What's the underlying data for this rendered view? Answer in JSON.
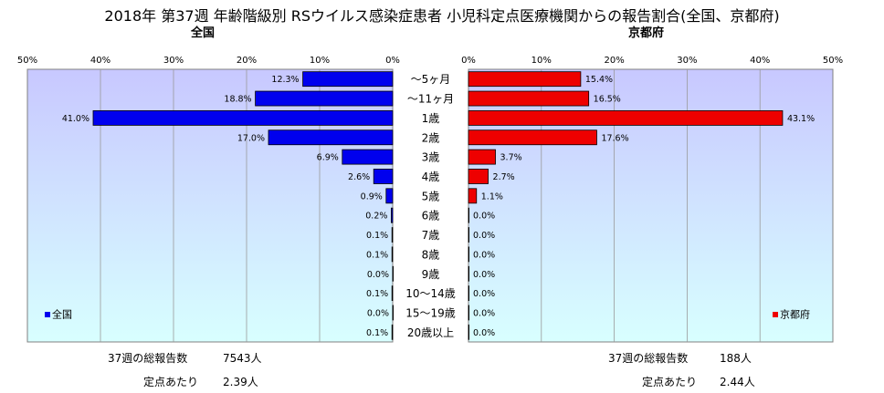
{
  "title": "2018年 第37週 年齢階級別 RSウイルス感染症患者 小児科定点医療機関からの報告割合(全国、京都府)",
  "left_subtitle": "全国",
  "right_subtitle": "京都府",
  "footer": {
    "national_total_label": "37週の総報告数",
    "national_total_value": "7543人",
    "national_per_label": "定点あたり",
    "national_per_value": "2.39人",
    "kyoto_total_label": "37週の総報告数",
    "kyoto_total_value": "188人",
    "kyoto_per_label": "定点あたり",
    "kyoto_per_value": "2.44人"
  },
  "colors": {
    "national": "#0000ee",
    "kyoto": "#ee0000",
    "plot_top": "#c8c8ff",
    "plot_bottom": "#d8ffff"
  },
  "chart_data": {
    "type": "bar",
    "orientation": "horizontal",
    "layout": "back-to-back",
    "categories": [
      "～5ヶ月",
      "～11ヶ月",
      "1歳",
      "2歳",
      "3歳",
      "4歳",
      "5歳",
      "6歳",
      "7歳",
      "8歳",
      "9歳",
      "10～14歳",
      "15～19歳",
      "20歳以上"
    ],
    "xlim": [
      0,
      50
    ],
    "ticks": [
      "0%",
      "10%",
      "20%",
      "30%",
      "40%",
      "50%"
    ],
    "series": [
      {
        "name": "全国",
        "side": "left",
        "values": [
          12.3,
          18.8,
          41.0,
          17.0,
          6.9,
          2.6,
          0.9,
          0.2,
          0.1,
          0.1,
          0.0,
          0.1,
          0.0,
          0.1
        ],
        "labels": [
          "12.3%",
          "18.8%",
          "41.0%",
          "17.0%",
          "6.9%",
          "2.6%",
          "0.9%",
          "0.2%",
          "0.1%",
          "0.1%",
          "0.0%",
          "0.1%",
          "0.0%",
          "0.1%"
        ]
      },
      {
        "name": "京都府",
        "side": "right",
        "values": [
          15.4,
          16.5,
          43.1,
          17.6,
          3.7,
          2.7,
          1.1,
          0.0,
          0.0,
          0.0,
          0.0,
          0.0,
          0.0,
          0.0
        ],
        "labels": [
          "15.4%",
          "16.5%",
          "43.1%",
          "17.6%",
          "3.7%",
          "2.7%",
          "1.1%",
          "0.0%",
          "0.0%",
          "0.0%",
          "0.0%",
          "0.0%",
          "0.0%",
          "0.0%"
        ]
      }
    ],
    "legend": [
      "全国",
      "京都府"
    ],
    "legend_position": "bottom-inside",
    "grid": true
  }
}
